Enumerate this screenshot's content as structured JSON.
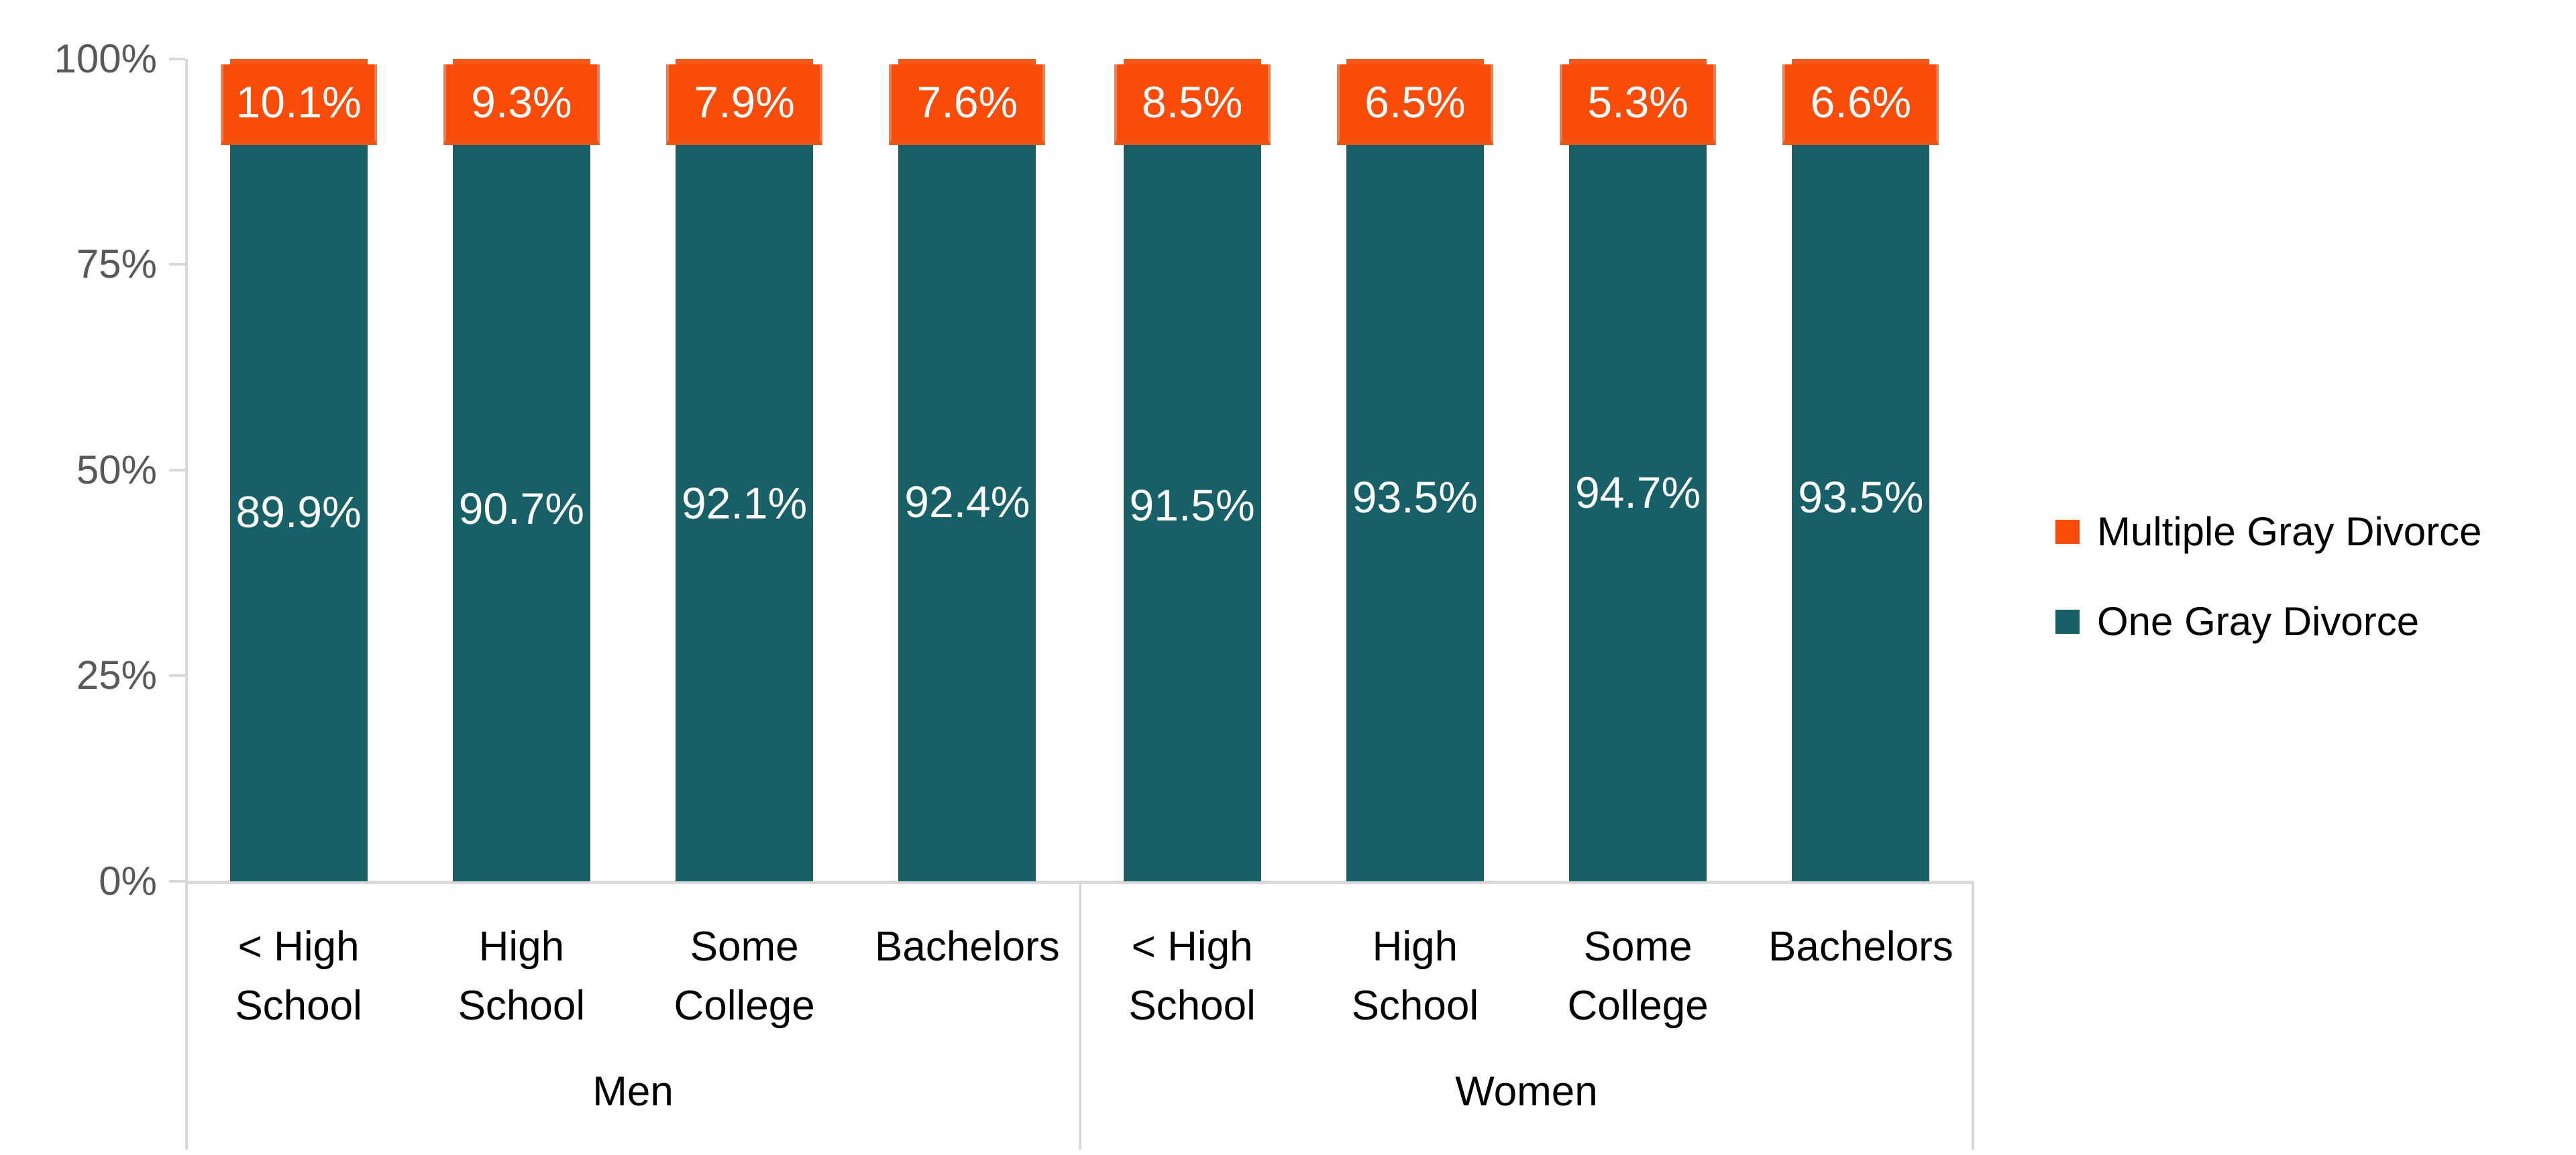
{
  "chart_data": {
    "type": "bar",
    "stacked": true,
    "orientation": "vertical",
    "title": "",
    "y_axis": {
      "min": 0,
      "max": 100,
      "tick_labels": [
        "100%",
        "75%",
        "50%",
        "25%",
        "0%"
      ],
      "unit": "%",
      "grid": false
    },
    "group_labels": [
      "Men",
      "Women"
    ],
    "categories": [
      "< High School",
      "High School",
      "Some College",
      "Bachelors",
      "< High School",
      "High School",
      "Some College",
      "Bachelors"
    ],
    "series": [
      {
        "name": "One Gray Divorce",
        "color": "#176067",
        "values": [
          89.9,
          90.7,
          92.1,
          92.4,
          91.5,
          93.5,
          94.7,
          93.5
        ]
      },
      {
        "name": "Multiple Gray Divorce",
        "color": "#FB4B09",
        "values": [
          10.1,
          9.3,
          7.9,
          7.6,
          8.5,
          6.5,
          5.3,
          6.6
        ]
      }
    ],
    "bars": [
      {
        "group": "Men",
        "category_line1": "< High",
        "category_line2": "School",
        "one_label": "89.9%",
        "multiple_label": "10.1%"
      },
      {
        "group": "Men",
        "category_line1": "High",
        "category_line2": "School",
        "one_label": "90.7%",
        "multiple_label": "9.3%"
      },
      {
        "group": "Men",
        "category_line1": "Some",
        "category_line2": "College",
        "one_label": "92.1%",
        "multiple_label": "7.9%"
      },
      {
        "group": "Men",
        "category_line1": "Bachelors",
        "category_line2": "",
        "one_label": "92.4%",
        "multiple_label": "7.6%"
      },
      {
        "group": "Women",
        "category_line1": "< High",
        "category_line2": "School",
        "one_label": "91.5%",
        "multiple_label": "8.5%"
      },
      {
        "group": "Women",
        "category_line1": "High",
        "category_line2": "School",
        "one_label": "93.5%",
        "multiple_label": "6.5%"
      },
      {
        "group": "Women",
        "category_line1": "Some",
        "category_line2": "College",
        "one_label": "94.7%",
        "multiple_label": "5.3%"
      },
      {
        "group": "Women",
        "category_line1": "Bachelors",
        "category_line2": "",
        "one_label": "93.5%",
        "multiple_label": "6.6%"
      }
    ],
    "legend": {
      "position": "right",
      "items": [
        {
          "label": "Multiple Gray Divorce",
          "color": "#FB4B09"
        },
        {
          "label": "One Gray Divorce",
          "color": "#176067"
        }
      ]
    },
    "colors": {
      "one_gray_divorce": "#176067",
      "multiple_gray_divorce_box": "#FB4B09",
      "multiple_gray_divorce_segment": "#F5591A",
      "axis_line": "#D9D9D9",
      "axis_tick_text": "#595959",
      "category_text": "#000000",
      "bar_value_text": "#FFFFFF"
    }
  }
}
